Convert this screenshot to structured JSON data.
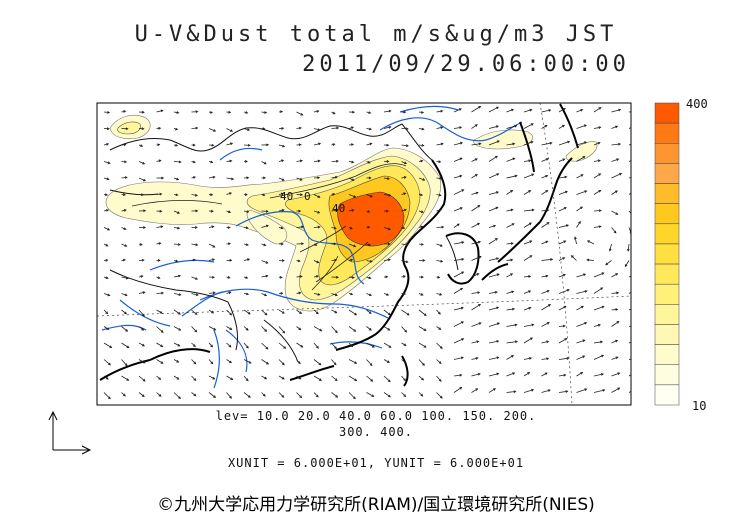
{
  "title": {
    "line1": "U-V&Dust total m/s&ug/m3 JST",
    "line2": "2011/09/29.06:00:00"
  },
  "colorbar": {
    "max_label": "400",
    "min_label": "10",
    "colors": [
      "#ff5a00",
      "#ff7a14",
      "#ff9530",
      "#ffa84a",
      "#ffbb2a",
      "#ffc81e",
      "#ffd52a",
      "#ffe040",
      "#ffe95a",
      "#fff07a",
      "#fff59a",
      "#fff8b4",
      "#fffbcc",
      "#fffde0",
      "#fffff2"
    ]
  },
  "levels": {
    "line1": "lev= 10.0 20.0 40.0 60.0 100. 150. 200.",
    "line2": "300. 400."
  },
  "units": "XUNIT = 6.000E+01, YUNIT = 6.000E+01",
  "contour_labels": [
    "40",
    "0",
    "40"
  ],
  "copyright": "©九州大学応用力学研究所(RIAM)/国立環境研究所(NIES)",
  "palette": {
    "coast": "#000000",
    "border": "#111111",
    "river": "#1a5fd6",
    "vector": "#222222"
  }
}
